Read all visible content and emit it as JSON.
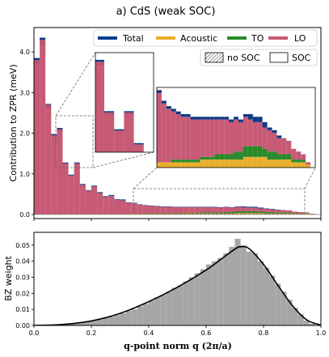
{
  "figure_title": "a) CdS (weak SOC)",
  "colors": {
    "total": "#0a3d8f",
    "acoustic": "#e7ae2c",
    "to": "#2a8a2a",
    "lo": "#c75a75",
    "hist": "#a6a6a6",
    "line": "#000000"
  },
  "chart_data": [
    {
      "type": "bar",
      "stacked": true,
      "ylabel": "Contribution to ZPR (meV)",
      "ylim": [
        -0.1,
        4.6
      ],
      "xlim": [
        0.0,
        1.0
      ],
      "yticks": [
        "0.0",
        "1.0",
        "2.0",
        "3.0",
        "4.0"
      ],
      "legend": {
        "placement": "top-right",
        "entries": [
          "Total",
          "Acoustic",
          "TO",
          "LO"
        ]
      },
      "legend2": {
        "placement": "top-right",
        "entries": [
          "no SOC",
          "SOC"
        ]
      },
      "bin_width": 0.02,
      "x": [
        0.01,
        0.03,
        0.05,
        0.07,
        0.09,
        0.11,
        0.13,
        0.15,
        0.17,
        0.19,
        0.21,
        0.23,
        0.25,
        0.27,
        0.29,
        0.31,
        0.33,
        0.35,
        0.37,
        0.39,
        0.41,
        0.43,
        0.45,
        0.47,
        0.49,
        0.51,
        0.53,
        0.55,
        0.57,
        0.59,
        0.61,
        0.63,
        0.65,
        0.67,
        0.69,
        0.71,
        0.73,
        0.75,
        0.77,
        0.79,
        0.81,
        0.83,
        0.85,
        0.87,
        0.89,
        0.91,
        0.93,
        0.95,
        0.97,
        0.99
      ],
      "series": [
        {
          "name": "Acoustic",
          "values": [
            0.0,
            0.0,
            0.0,
            0.0,
            0.0,
            0.01,
            0.01,
            0.01,
            0.01,
            0.01,
            0.01,
            0.01,
            0.01,
            0.01,
            0.01,
            0.01,
            0.01,
            0.02,
            0.02,
            0.02,
            0.02,
            0.02,
            0.02,
            0.02,
            0.02,
            0.02,
            0.03,
            0.03,
            0.03,
            0.03,
            0.03,
            0.03,
            0.03,
            0.03,
            0.03,
            0.04,
            0.04,
            0.04,
            0.04,
            0.04,
            0.03,
            0.03,
            0.03,
            0.03,
            0.03,
            0.02,
            0.02,
            0.02,
            0.01,
            0.0
          ]
        },
        {
          "name": "TO",
          "values": [
            0.0,
            0.0,
            0.0,
            0.0,
            0.0,
            0.0,
            0.0,
            0.0,
            0.0,
            0.0,
            0.0,
            0.0,
            0.0,
            0.0,
            0.0,
            0.0,
            0.0,
            0.0,
            0.0,
            0.0,
            0.01,
            0.01,
            0.01,
            0.01,
            0.01,
            0.01,
            0.01,
            0.01,
            0.01,
            0.02,
            0.02,
            0.02,
            0.02,
            0.03,
            0.03,
            0.04,
            0.04,
            0.04,
            0.04,
            0.03,
            0.03,
            0.03,
            0.02,
            0.02,
            0.02,
            0.01,
            0.01,
            0.01,
            0.0,
            0.0
          ]
        },
        {
          "name": "LO",
          "values": [
            3.8,
            4.3,
            2.7,
            1.95,
            2.1,
            1.25,
            0.95,
            1.25,
            0.72,
            0.58,
            0.68,
            0.52,
            0.42,
            0.45,
            0.36,
            0.34,
            0.28,
            0.26,
            0.22,
            0.2,
            0.18,
            0.17,
            0.16,
            0.16,
            0.15,
            0.15,
            0.14,
            0.14,
            0.14,
            0.13,
            0.13,
            0.13,
            0.12,
            0.12,
            0.11,
            0.11,
            0.1,
            0.09,
            0.09,
            0.08,
            0.08,
            0.07,
            0.06,
            0.06,
            0.05,
            0.04,
            0.03,
            0.02,
            0.01,
            0.0
          ]
        },
        {
          "name": "Total",
          "values": [
            3.85,
            4.35,
            2.72,
            1.98,
            2.13,
            1.28,
            0.98,
            1.28,
            0.75,
            0.6,
            0.71,
            0.55,
            0.45,
            0.48,
            0.38,
            0.37,
            0.3,
            0.29,
            0.25,
            0.23,
            0.22,
            0.21,
            0.2,
            0.2,
            0.19,
            0.19,
            0.19,
            0.19,
            0.19,
            0.19,
            0.19,
            0.19,
            0.18,
            0.19,
            0.18,
            0.2,
            0.2,
            0.19,
            0.19,
            0.17,
            0.15,
            0.14,
            0.12,
            0.11,
            0.1,
            0.07,
            0.05,
            0.03,
            0.02,
            0.0
          ]
        }
      ]
    },
    {
      "type": "bar",
      "xlabel": "q-point norm q (2π/a)",
      "ylabel": "BZ weight",
      "xlim": [
        0.0,
        1.0
      ],
      "ylim": [
        0.0,
        0.058
      ],
      "xticks": [
        "0.0",
        "0.2",
        "0.4",
        "0.6",
        "0.8",
        "1.0"
      ],
      "yticks": [
        "0.00",
        "0.01",
        "0.02",
        "0.03",
        "0.04",
        "0.05"
      ],
      "bin_width": 0.02,
      "x": [
        0.01,
        0.03,
        0.05,
        0.07,
        0.09,
        0.11,
        0.13,
        0.15,
        0.17,
        0.19,
        0.21,
        0.23,
        0.25,
        0.27,
        0.29,
        0.31,
        0.33,
        0.35,
        0.37,
        0.39,
        0.41,
        0.43,
        0.45,
        0.47,
        0.49,
        0.51,
        0.53,
        0.55,
        0.57,
        0.59,
        0.61,
        0.63,
        0.65,
        0.67,
        0.69,
        0.71,
        0.73,
        0.75,
        0.77,
        0.79,
        0.81,
        0.83,
        0.85,
        0.87,
        0.89,
        0.91,
        0.93,
        0.95,
        0.97,
        0.99
      ],
      "values": [
        0.0,
        0.0,
        0.0001,
        0.0002,
        0.0004,
        0.0006,
        0.0009,
        0.0013,
        0.0018,
        0.0024,
        0.003,
        0.0036,
        0.0045,
        0.0055,
        0.0065,
        0.0075,
        0.009,
        0.01,
        0.012,
        0.0135,
        0.0155,
        0.0175,
        0.019,
        0.021,
        0.0235,
        0.025,
        0.0275,
        0.03,
        0.0325,
        0.035,
        0.038,
        0.04,
        0.042,
        0.045,
        0.049,
        0.054,
        0.05,
        0.046,
        0.045,
        0.04,
        0.036,
        0.031,
        0.026,
        0.021,
        0.016,
        0.011,
        0.007,
        0.003,
        0.001,
        0.0
      ],
      "curve": {
        "x": [
          0.0,
          0.1,
          0.2,
          0.3,
          0.4,
          0.5,
          0.6,
          0.65,
          0.7,
          0.72,
          0.75,
          0.8,
          0.85,
          0.9,
          0.95,
          1.0
        ],
        "y": [
          0.0,
          0.0006,
          0.0028,
          0.0075,
          0.0148,
          0.0238,
          0.0345,
          0.041,
          0.0475,
          0.049,
          0.0478,
          0.038,
          0.025,
          0.0125,
          0.0035,
          0.0002
        ]
      }
    }
  ]
}
